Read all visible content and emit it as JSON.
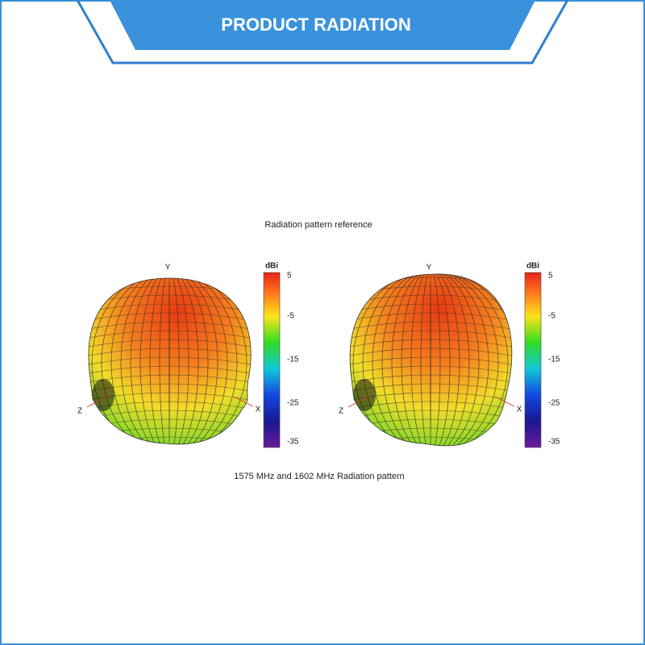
{
  "header": {
    "title": "PRODUCT RADIATION"
  },
  "caption": "Radiation pattern reference",
  "plots": [
    {
      "axes": {
        "y": "Y",
        "z": "Z",
        "x": "X"
      },
      "colorbar": {
        "unit": "dBi",
        "ticks": [
          "5",
          "-5",
          "-15",
          "-25",
          "-35"
        ]
      }
    },
    {
      "axes": {
        "y": "Y",
        "z": "Z",
        "x": "X"
      },
      "colorbar": {
        "unit": "dBi",
        "ticks": [
          "5",
          "-5",
          "-15",
          "-25",
          "-35"
        ]
      }
    }
  ],
  "footer_caption": "1575 MHz and 1602 MHz Radiation pattern"
}
